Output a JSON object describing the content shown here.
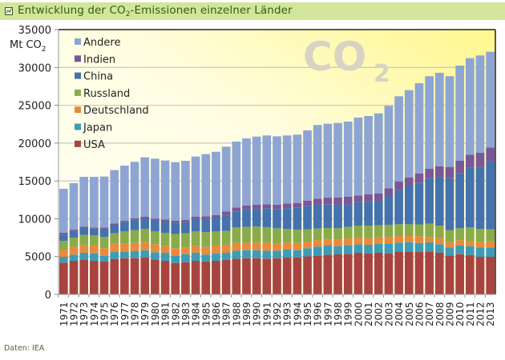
{
  "title": {
    "icon": "chart-icon",
    "text_before": "Entwicklung der CO",
    "subscript": "2",
    "text_after": "-Emissionen einzelner Länder"
  },
  "source": "Daten: IEA",
  "watermark": {
    "main": "CO",
    "sub": "2"
  },
  "chart_data": {
    "type": "bar",
    "stacked": true,
    "title": "Entwicklung der CO2-Emissionen einzelner Länder",
    "xlabel": "",
    "ylabel": "Mt CO2",
    "ylabel_main": "Mt CO",
    "ylabel_sub": "2",
    "ylim": [
      0,
      35000
    ],
    "yticks": [
      0,
      5000,
      10000,
      15000,
      20000,
      25000,
      30000,
      35000
    ],
    "grid": true,
    "legend_position": "top-left",
    "categories": [
      "1971",
      "1972",
      "1973",
      "1974",
      "1975",
      "1976",
      "1977",
      "1978",
      "1979",
      "1980",
      "1981",
      "1982",
      "1983",
      "1984",
      "1985",
      "1986",
      "1987",
      "1988",
      "1989",
      "1990",
      "1991",
      "1992",
      "1993",
      "1994",
      "1995",
      "1996",
      "1997",
      "1998",
      "1999",
      "2000",
      "2001",
      "2002",
      "2003",
      "2004",
      "2005",
      "2006",
      "2007",
      "2008",
      "2009",
      "2010",
      "2011",
      "2012",
      "2013"
    ],
    "series": [
      {
        "name": "USA",
        "color": "#a84440",
        "values": [
          4200,
          4440,
          4550,
          4440,
          4340,
          4690,
          4790,
          4790,
          4900,
          4620,
          4440,
          4160,
          4260,
          4440,
          4370,
          4440,
          4550,
          4720,
          4790,
          4790,
          4720,
          4790,
          4860,
          4900,
          5020,
          5150,
          5250,
          5290,
          5360,
          5500,
          5430,
          5500,
          5430,
          5680,
          5680,
          5600,
          5680,
          5500,
          5150,
          5320,
          5210,
          4970,
          4970
        ]
      },
      {
        "name": "Japan",
        "color": "#3c9cb8",
        "values": [
          770,
          810,
          950,
          990,
          740,
          910,
          890,
          950,
          950,
          950,
          1060,
          990,
          1060,
          1060,
          880,
          990,
          950,
          1060,
          1060,
          1060,
          1060,
          990,
          1060,
          950,
          1080,
          1180,
          1200,
          1090,
          1160,
          1130,
          1130,
          1160,
          1300,
          1160,
          1230,
          1200,
          1200,
          1130,
          1060,
          1130,
          1170,
          1240,
          1240
        ]
      },
      {
        "name": "Deutschland",
        "color": "#e98a3c",
        "values": [
          950,
          1020,
          1060,
          1020,
          1020,
          1130,
          1050,
          1060,
          1060,
          1060,
          880,
          950,
          890,
          880,
          1020,
          1020,
          1060,
          1020,
          990,
          990,
          1060,
          950,
          920,
          950,
          880,
          820,
          810,
          880,
          880,
          880,
          880,
          880,
          880,
          880,
          810,
          900,
          700,
          810,
          700,
          710,
          700,
          700,
          800
        ]
      },
      {
        "name": "Russland",
        "color": "#8aab4a",
        "values": [
          1160,
          1240,
          1300,
          1340,
          1510,
          1340,
          1590,
          1690,
          1760,
          1690,
          1760,
          1860,
          1860,
          1940,
          1950,
          1870,
          1830,
          2050,
          2080,
          2120,
          2010,
          2010,
          1830,
          1760,
          1620,
          1550,
          1520,
          1480,
          1520,
          1580,
          1650,
          1590,
          1590,
          1550,
          1550,
          1550,
          1760,
          1650,
          1580,
          1580,
          1770,
          1760,
          1590
        ]
      },
      {
        "name": "China",
        "color": "#4472ae",
        "values": [
          820,
          880,
          920,
          910,
          1070,
          1130,
          1230,
          1360,
          1380,
          1460,
          1480,
          1520,
          1480,
          1650,
          1750,
          1830,
          2110,
          2120,
          2320,
          2350,
          2540,
          2500,
          2720,
          2930,
          3100,
          3150,
          3140,
          3110,
          2930,
          3100,
          3190,
          3240,
          3810,
          4510,
          5110,
          5520,
          6030,
          6450,
          6880,
          7300,
          7890,
          8180,
          8990
        ]
      },
      {
        "name": "Indien",
        "color": "#7a5796",
        "values": [
          240,
          170,
          170,
          150,
          170,
          180,
          180,
          200,
          210,
          220,
          280,
          250,
          280,
          290,
          360,
          350,
          470,
          520,
          500,
          530,
          530,
          600,
          630,
          600,
          700,
          800,
          870,
          970,
          1050,
          890,
          940,
          990,
          1020,
          1130,
          1060,
          1230,
          1230,
          1410,
          1480,
          1620,
          1730,
          1870,
          1830
        ]
      },
      {
        "name": "Andere",
        "color": "#8ea5d4",
        "values": [
          5820,
          6140,
          6590,
          6690,
          6730,
          7050,
          7290,
          7470,
          7860,
          7940,
          7800,
          7750,
          7830,
          7960,
          8210,
          8350,
          8560,
          8710,
          8880,
          9020,
          9090,
          9060,
          8990,
          9030,
          9280,
          9740,
          9770,
          9840,
          9940,
          10290,
          10360,
          10570,
          10890,
          11280,
          11560,
          11920,
          12240,
          12340,
          11990,
          12580,
          12760,
          12860,
          12650
        ]
      }
    ]
  }
}
